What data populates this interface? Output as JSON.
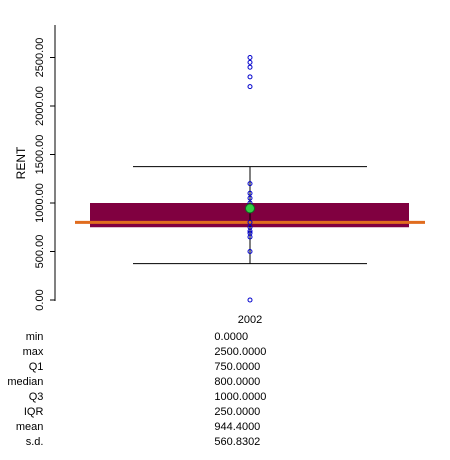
{
  "chart_data": {
    "type": "box",
    "ylabel": "RENT",
    "categories": [
      "2002"
    ],
    "ylim": [
      0,
      2900
    ],
    "y_ticks": [
      0,
      500,
      1000,
      1500,
      2000,
      2500
    ],
    "y_tick_labels": [
      "0.00",
      "500.00",
      "1000.00",
      "1500.00",
      "2000.00",
      "2500.00"
    ],
    "box": {
      "q1": 750,
      "q3": 1000,
      "median": 800,
      "mean": 944.4,
      "whisker_low": 375,
      "whisker_high": 1375
    },
    "points": [
      0,
      500,
      650,
      690,
      710,
      750,
      800,
      950,
      1000,
      1050,
      1100,
      1200,
      2200,
      2300,
      2400,
      2450,
      2500
    ],
    "colors": {
      "box": "#800040",
      "median": "#e06c1e",
      "mean": "#33cc44",
      "points": "#0000cc",
      "whisker": "#000000"
    }
  },
  "stats": [
    {
      "name": "min",
      "value": "0.0000"
    },
    {
      "name": "max",
      "value": "2500.0000"
    },
    {
      "name": "Q1",
      "value": "750.0000"
    },
    {
      "name": "median",
      "value": "800.0000"
    },
    {
      "name": "Q3",
      "value": "1000.0000"
    },
    {
      "name": "IQR",
      "value": "250.0000"
    },
    {
      "name": "mean",
      "value": "944.4000"
    },
    {
      "name": "s.d.",
      "value": "560.8302"
    }
  ]
}
